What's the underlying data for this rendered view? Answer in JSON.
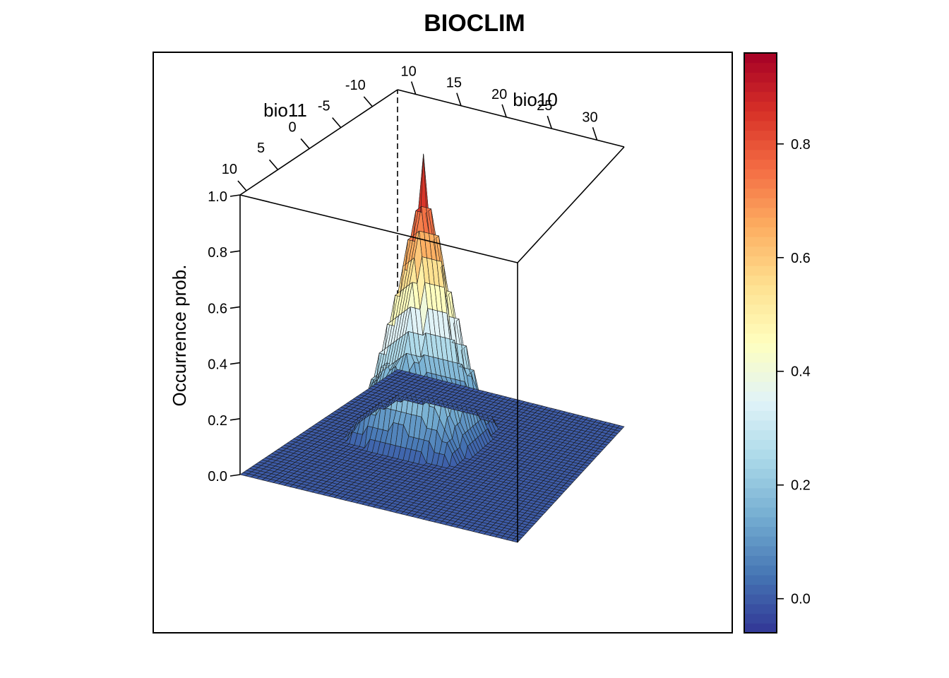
{
  "chart_data": {
    "type": "surface3d",
    "title": "BIOCLIM",
    "x_axis": {
      "label": "bio10",
      "ticks": [
        10,
        15,
        20,
        25,
        30
      ],
      "range": [
        8,
        33
      ]
    },
    "y_axis": {
      "label": "bio11",
      "ticks": [
        10,
        5,
        0,
        -5,
        -10
      ],
      "range": [
        -14,
        11
      ]
    },
    "z_axis": {
      "label": "Occurrence prob.",
      "ticks": [
        "0.0",
        "0.2",
        "0.4",
        "0.6",
        "0.8",
        "1.0"
      ],
      "range": [
        0,
        1
      ]
    },
    "surface": {
      "peak": {
        "bio10": 17,
        "bio11": -4,
        "value": 1.0
      },
      "steps": [
        0,
        0.035,
        0.07,
        0.105,
        0.14,
        0.175,
        0.21,
        0.3,
        0.4,
        0.5,
        0.6,
        0.7,
        0.8,
        0.9,
        1.0
      ],
      "grid": {
        "nx": 50,
        "ny": 50
      }
    },
    "colorbar": {
      "ticks": [
        "0.0",
        "0.2",
        "0.4",
        "0.6",
        "0.8"
      ],
      "range": [
        -0.06,
        0.96
      ]
    },
    "colors": [
      "#313695",
      "#4575b4",
      "#74add1",
      "#abd9e9",
      "#e0f3f8",
      "#ffffbf",
      "#fee090",
      "#fdae61",
      "#f46d43",
      "#d73027",
      "#a50026"
    ]
  }
}
